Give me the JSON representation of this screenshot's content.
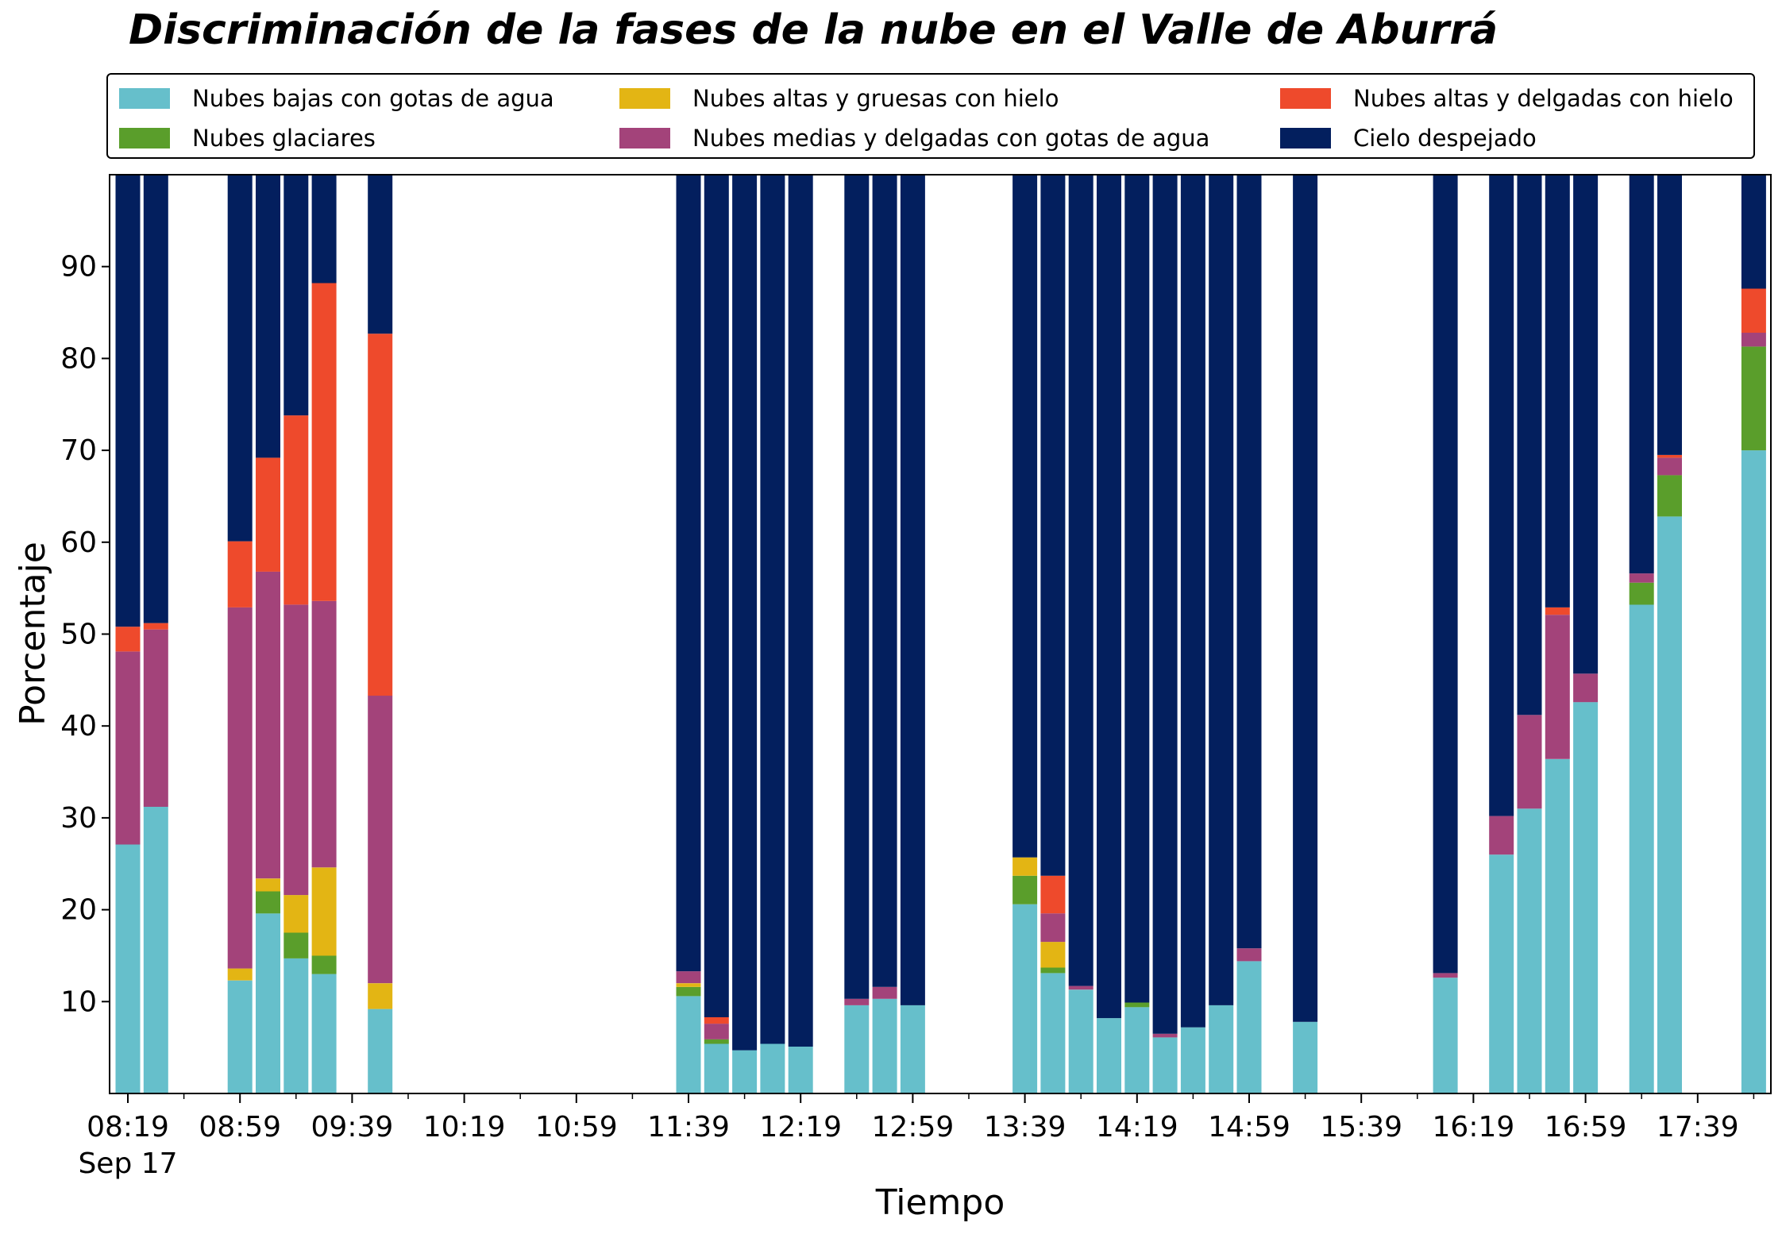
{
  "chart_data": {
    "type": "bar",
    "stacked": true,
    "title": "Discriminación de la fases de la nube en el Valle de Aburrá",
    "xlabel": "Tiempo",
    "ylabel": "Porcentaje",
    "ylim": [
      0,
      100
    ],
    "yticks": [
      10,
      20,
      30,
      40,
      50,
      60,
      70,
      80,
      90
    ],
    "x_unit_minutes": 10,
    "x_start": "08:19",
    "x_end": "18:09",
    "xticks": [
      {
        "label": "08:19",
        "sublabel": "Sep 17",
        "slot": 0
      },
      {
        "label": "08:59",
        "slot": 4
      },
      {
        "label": "09:39",
        "slot": 8
      },
      {
        "label": "10:19",
        "slot": 12
      },
      {
        "label": "10:59",
        "slot": 16
      },
      {
        "label": "11:39",
        "slot": 20
      },
      {
        "label": "12:19",
        "slot": 24
      },
      {
        "label": "12:59",
        "slot": 28
      },
      {
        "label": "13:39",
        "slot": 32
      },
      {
        "label": "14:19",
        "slot": 36
      },
      {
        "label": "14:59",
        "slot": 40
      },
      {
        "label": "15:39",
        "slot": 44
      },
      {
        "label": "16:19",
        "slot": 48
      },
      {
        "label": "16:59",
        "slot": 52
      },
      {
        "label": "17:39",
        "slot": 56
      }
    ],
    "minor_tick_slots": [
      2,
      6,
      10,
      14,
      18,
      22,
      26,
      30,
      34,
      38,
      42,
      46,
      50,
      54,
      58
    ],
    "legend_position": "top",
    "series": [
      {
        "key": "bajas",
        "name": "Nubes bajas con gotas de agua",
        "color": "#66bfcb"
      },
      {
        "key": "glaciares",
        "name": "Nubes glaciares",
        "color": "#5a9e2b"
      },
      {
        "key": "altas_gruesas",
        "name": "Nubes altas y gruesas con hielo",
        "color": "#e3b514"
      },
      {
        "key": "medias",
        "name": "Nubes medias y delgadas con gotas de agua",
        "color": "#a3437a"
      },
      {
        "key": "altas_delgadas",
        "name": "Nubes altas y delgadas con hielo",
        "color": "#ee4a2c"
      },
      {
        "key": "despejado",
        "name": "Cielo despejado",
        "color": "#031f5e"
      }
    ],
    "bars": [
      {
        "time": "08:19",
        "slot": 0,
        "values": [
          27.1,
          0,
          0,
          21.0,
          2.7,
          49.2
        ]
      },
      {
        "time": "08:29",
        "slot": 1,
        "values": [
          31.2,
          0,
          0,
          19.3,
          0.7,
          48.8
        ]
      },
      {
        "time": "08:59",
        "slot": 4,
        "values": [
          12.3,
          0,
          1.3,
          39.3,
          7.2,
          39.9
        ]
      },
      {
        "time": "09:09",
        "slot": 5,
        "values": [
          19.6,
          2.4,
          1.4,
          33.4,
          12.4,
          30.8
        ]
      },
      {
        "time": "09:19",
        "slot": 6,
        "values": [
          14.7,
          2.8,
          4.1,
          31.6,
          20.6,
          26.2
        ]
      },
      {
        "time": "09:29",
        "slot": 7,
        "values": [
          13.0,
          2.0,
          9.6,
          29.0,
          34.6,
          11.8
        ]
      },
      {
        "time": "09:49",
        "slot": 9,
        "values": [
          9.2,
          0,
          2.8,
          31.3,
          39.4,
          17.3
        ]
      },
      {
        "time": "11:39",
        "slot": 20,
        "values": [
          10.6,
          1.0,
          0.4,
          1.3,
          0,
          86.7
        ]
      },
      {
        "time": "11:49",
        "slot": 21,
        "values": [
          5.4,
          0.5,
          0,
          1.7,
          0.7,
          91.7
        ]
      },
      {
        "time": "11:59",
        "slot": 22,
        "values": [
          4.7,
          0,
          0,
          0,
          0,
          95.3
        ]
      },
      {
        "time": "12:09",
        "slot": 23,
        "values": [
          5.4,
          0,
          0,
          0,
          0,
          94.6
        ]
      },
      {
        "time": "12:19",
        "slot": 24,
        "values": [
          5.1,
          0,
          0,
          0,
          0,
          94.9
        ]
      },
      {
        "time": "12:39",
        "slot": 26,
        "values": [
          9.6,
          0,
          0,
          0.7,
          0,
          89.7
        ]
      },
      {
        "time": "12:49",
        "slot": 27,
        "values": [
          10.3,
          0,
          0,
          1.3,
          0,
          88.4
        ]
      },
      {
        "time": "12:59",
        "slot": 28,
        "values": [
          9.6,
          0,
          0,
          0,
          0,
          90.4
        ]
      },
      {
        "time": "13:39",
        "slot": 32,
        "values": [
          20.6,
          3.1,
          2.0,
          0,
          0,
          74.3
        ]
      },
      {
        "time": "13:49",
        "slot": 33,
        "values": [
          13.1,
          0.6,
          2.8,
          3.1,
          4.1,
          76.3
        ]
      },
      {
        "time": "13:59",
        "slot": 34,
        "values": [
          11.3,
          0,
          0,
          0.4,
          0,
          88.3
        ]
      },
      {
        "time": "14:09",
        "slot": 35,
        "values": [
          8.2,
          0,
          0,
          0,
          0,
          91.8
        ]
      },
      {
        "time": "14:19",
        "slot": 36,
        "values": [
          9.4,
          0.5,
          0,
          0,
          0,
          90.1
        ]
      },
      {
        "time": "14:29",
        "slot": 37,
        "values": [
          6.1,
          0,
          0,
          0.4,
          0,
          93.5
        ]
      },
      {
        "time": "14:39",
        "slot": 38,
        "values": [
          7.2,
          0,
          0,
          0,
          0,
          92.8
        ]
      },
      {
        "time": "14:49",
        "slot": 39,
        "values": [
          9.6,
          0,
          0,
          0,
          0,
          90.4
        ]
      },
      {
        "time": "14:59",
        "slot": 40,
        "values": [
          14.4,
          0,
          0,
          1.4,
          0,
          84.2
        ]
      },
      {
        "time": "15:19",
        "slot": 42,
        "values": [
          7.8,
          0,
          0,
          0,
          0,
          92.2
        ]
      },
      {
        "time": "16:09",
        "slot": 47,
        "values": [
          12.6,
          0,
          0,
          0.5,
          0,
          86.9
        ]
      },
      {
        "time": "16:29",
        "slot": 49,
        "values": [
          26.0,
          0,
          0,
          4.2,
          0,
          69.8
        ]
      },
      {
        "time": "16:39",
        "slot": 50,
        "values": [
          31.0,
          0,
          0,
          10.2,
          0,
          58.8
        ]
      },
      {
        "time": "16:49",
        "slot": 51,
        "values": [
          36.4,
          0,
          0,
          15.7,
          0.8,
          47.1
        ]
      },
      {
        "time": "16:59",
        "slot": 52,
        "values": [
          42.6,
          0,
          0,
          3.1,
          0,
          54.3
        ]
      },
      {
        "time": "17:19",
        "slot": 54,
        "values": [
          53.2,
          2.4,
          0,
          1.0,
          0,
          43.4
        ]
      },
      {
        "time": "17:29",
        "slot": 55,
        "values": [
          62.8,
          4.5,
          0,
          1.9,
          0.3,
          30.5
        ]
      },
      {
        "time": "17:59",
        "slot": 58,
        "values": [
          70.0,
          11.3,
          0,
          1.5,
          4.8,
          12.4
        ]
      }
    ]
  }
}
